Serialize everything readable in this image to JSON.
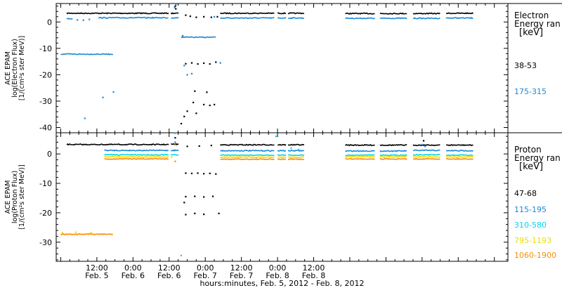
{
  "chart_data": [
    {
      "type": "scatter",
      "ylabel_lines": [
        "ACE EPAM",
        "log(Electron Flux)",
        "[1/(cm²s ster MeV)]"
      ],
      "ylim": [
        -42,
        7
      ],
      "yticks": [
        0,
        -10,
        -20,
        -30,
        -40
      ],
      "legend_title_lines": [
        "Electron",
        "Energy ran",
        "[keV]"
      ],
      "series": [
        {
          "name": "38-53",
          "color": "#000000",
          "runs": [
            {
              "t0": 2.0,
              "t1": 36.0,
              "y": 3.3
            },
            {
              "t0": 36.6,
              "t1": 39.2,
              "y": 3.3
            },
            {
              "t0": 53.0,
              "t1": 71.0,
              "y": 3.3
            },
            {
              "t0": 72.0,
              "t1": 75.0,
              "y": 3.3
            },
            {
              "t0": 75.5,
              "t1": 81.0,
              "y": 3.3
            },
            {
              "t0": 94.5,
              "t1": 104.5,
              "y": 3.2
            },
            {
              "t0": 106.0,
              "t1": 115.0,
              "y": 3.2
            },
            {
              "t0": 117.0,
              "t1": 126.0,
              "y": 3.2
            },
            {
              "t0": 128.0,
              "t1": 137.0,
              "y": 3.3
            }
          ],
          "points": [
            [
              38.0,
              6.0
            ],
            [
              38.2,
              5.0
            ],
            [
              41.5,
              2.6
            ],
            [
              43.0,
              2.2
            ],
            [
              45.0,
              1.8
            ],
            [
              47.5,
              2.0
            ],
            [
              50.0,
              1.8
            ],
            [
              52.0,
              2.0
            ],
            [
              41.5,
              -15.8
            ],
            [
              43.5,
              -15.5
            ],
            [
              45.5,
              -15.9
            ],
            [
              47.5,
              -15.6
            ],
            [
              49.5,
              -15.9
            ],
            [
              51.5,
              -15.2
            ],
            [
              44.5,
              -26.2
            ],
            [
              48.5,
              -26.6
            ],
            [
              44.0,
              -30.5
            ],
            [
              47.5,
              -31.3
            ],
            [
              49.5,
              -31.6
            ],
            [
              51.0,
              -31.3
            ],
            [
              42.0,
              -33.8
            ],
            [
              45.0,
              -34.6
            ],
            [
              41.0,
              -35.8
            ],
            [
              40.0,
              -38.5
            ]
          ]
        },
        {
          "name": "175-315",
          "color": "#1e88d8",
          "runs": [
            {
              "t0": 2.0,
              "t1": 4.0,
              "y": 1.3
            },
            {
              "t0": 12.5,
              "t1": 36.0,
              "y": 1.6
            },
            {
              "t0": 36.6,
              "t1": 39.2,
              "y": 1.6
            },
            {
              "t0": 53.0,
              "t1": 71.0,
              "y": 1.5
            },
            {
              "t0": 72.0,
              "t1": 75.0,
              "y": 1.5
            },
            {
              "t0": 75.5,
              "t1": 81.0,
              "y": 1.5
            },
            {
              "t0": 94.5,
              "t1": 104.5,
              "y": 1.4
            },
            {
              "t0": 106.0,
              "t1": 115.0,
              "y": 1.4
            },
            {
              "t0": 117.0,
              "t1": 126.0,
              "y": 1.4
            },
            {
              "t0": 128.0,
              "t1": 137.0,
              "y": 1.5
            },
            {
              "t0": 0.0,
              "t1": 17.5,
              "y": -12.2
            },
            {
              "t0": 40.0,
              "t1": 51.5,
              "y": -5.8
            }
          ],
          "points": [
            [
              5.5,
              0.8
            ],
            [
              7.5,
              0.7
            ],
            [
              9.5,
              1.0
            ],
            [
              37.8,
              5.5
            ],
            [
              38.2,
              6.5
            ],
            [
              40.5,
              -5.2
            ],
            [
              41.0,
              -16.5
            ],
            [
              42.0,
              -20.0
            ],
            [
              43.5,
              -19.6
            ],
            [
              53.0,
              -15.5
            ],
            [
              17.5,
              -26.5
            ],
            [
              14.0,
              -28.6
            ],
            [
              8.0,
              -36.5
            ],
            [
              51.0,
              2.0
            ]
          ]
        }
      ]
    },
    {
      "type": "scatter",
      "ylabel_lines": [
        "ACE EPAM",
        "log(Proton Flux)",
        "[1/(cm²s ster MeV)]"
      ],
      "ylim": [
        -36.5,
        7.2
      ],
      "yticks": [
        0,
        -10,
        -20,
        -30
      ],
      "legend_title_lines": [
        "Proton",
        "Energy ran",
        "[keV]"
      ],
      "series": [
        {
          "name": "47-68",
          "color": "#000000",
          "runs": [
            {
              "t0": 2.0,
              "t1": 36.0,
              "y": 3.2
            },
            {
              "t0": 36.6,
              "t1": 39.2,
              "y": 3.3
            },
            {
              "t0": 53.0,
              "t1": 71.0,
              "y": 3.1
            },
            {
              "t0": 72.0,
              "t1": 75.0,
              "y": 3.1
            },
            {
              "t0": 75.5,
              "t1": 81.0,
              "y": 3.1
            },
            {
              "t0": 94.5,
              "t1": 104.5,
              "y": 3.0
            },
            {
              "t0": 106.0,
              "t1": 115.0,
              "y": 3.0
            },
            {
              "t0": 117.0,
              "t1": 126.0,
              "y": 3.0
            },
            {
              "t0": 128.0,
              "t1": 137.0,
              "y": 3.0
            }
          ],
          "points": [
            [
              38.0,
              5.5
            ],
            [
              42.0,
              2.6
            ],
            [
              46.0,
              2.7
            ],
            [
              50.0,
              2.9
            ],
            [
              41.5,
              -6.5
            ],
            [
              43.5,
              -6.6
            ],
            [
              45.5,
              -6.5
            ],
            [
              47.5,
              -6.7
            ],
            [
              49.5,
              -6.6
            ],
            [
              51.5,
              -6.8
            ],
            [
              41.5,
              -14.5
            ],
            [
              44.5,
              -14.4
            ],
            [
              47.5,
              -14.6
            ],
            [
              50.5,
              -14.4
            ],
            [
              41.5,
              -20.6
            ],
            [
              44.5,
              -20.2
            ],
            [
              47.5,
              -20.5
            ],
            [
              52.5,
              -20.2
            ],
            [
              41.0,
              -16.5
            ],
            [
              120.5,
              4.5
            ]
          ]
        },
        {
          "name": "115-195",
          "color": "#1e88d8",
          "runs": [
            {
              "t0": 14.5,
              "t1": 36.0,
              "y": 1.2
            },
            {
              "t0": 36.6,
              "t1": 39.2,
              "y": 1.2
            },
            {
              "t0": 53.0,
              "t1": 71.0,
              "y": 1.1
            },
            {
              "t0": 72.0,
              "t1": 75.0,
              "y": 1.1
            },
            {
              "t0": 75.5,
              "t1": 81.0,
              "y": 1.1
            },
            {
              "t0": 94.5,
              "t1": 104.5,
              "y": 1.0
            },
            {
              "t0": 106.0,
              "t1": 115.0,
              "y": 1.0
            },
            {
              "t0": 117.0,
              "t1": 126.0,
              "y": 1.2
            },
            {
              "t0": 128.0,
              "t1": 137.0,
              "y": 1.1
            }
          ],
          "points": [
            [
              38.0,
              4.0
            ],
            [
              120.0,
              3.2
            ],
            [
              121.0,
              2.6
            ]
          ]
        },
        {
          "name": "310-580",
          "color": "#00d8e8",
          "runs": [
            {
              "t0": 14.5,
              "t1": 36.0,
              "y": -0.3
            },
            {
              "t0": 36.6,
              "t1": 39.2,
              "y": -0.3
            },
            {
              "t0": 53.0,
              "t1": 71.0,
              "y": -0.4
            },
            {
              "t0": 72.0,
              "t1": 75.0,
              "y": -0.4
            },
            {
              "t0": 75.5,
              "t1": 81.0,
              "y": -0.4
            },
            {
              "t0": 94.5,
              "t1": 104.5,
              "y": -0.4
            },
            {
              "t0": 106.0,
              "t1": 115.0,
              "y": -0.4
            },
            {
              "t0": 117.0,
              "t1": 126.0,
              "y": -0.3
            },
            {
              "t0": 128.0,
              "t1": 137.0,
              "y": -0.4
            }
          ],
          "points": [
            [
              38.0,
              7.0
            ],
            [
              71.5,
              6.0
            ],
            [
              76.5,
              2.0
            ],
            [
              79.0,
              1.5
            ]
          ]
        },
        {
          "name": "795-1193",
          "color": "#e8e000",
          "runs": [
            {
              "t0": 14.5,
              "t1": 36.0,
              "y": -1.0
            },
            {
              "t0": 53.0,
              "t1": 71.0,
              "y": -1.1
            },
            {
              "t0": 72.0,
              "t1": 75.0,
              "y": -1.1
            },
            {
              "t0": 75.5,
              "t1": 81.0,
              "y": -1.1
            },
            {
              "t0": 94.5,
              "t1": 104.5,
              "y": -1.0
            },
            {
              "t0": 106.0,
              "t1": 115.0,
              "y": -1.0
            },
            {
              "t0": 117.0,
              "t1": 126.0,
              "y": -1.0
            },
            {
              "t0": 128.0,
              "t1": 137.0,
              "y": -1.0
            }
          ],
          "points": [
            [
              36.8,
              -1.0
            ],
            [
              38.0,
              3.0
            ],
            [
              0.5,
              -26.8
            ],
            [
              5.0,
              -26.6
            ],
            [
              10.0,
              -26.7
            ]
          ]
        },
        {
          "name": "1060-1900",
          "color": "#ff8c00",
          "runs": [
            {
              "t0": 14.5,
              "t1": 36.0,
              "y": -1.7
            },
            {
              "t0": 53.0,
              "t1": 71.0,
              "y": -1.8
            },
            {
              "t0": 72.0,
              "t1": 75.0,
              "y": -1.8
            },
            {
              "t0": 75.5,
              "t1": 81.0,
              "y": -1.8
            },
            {
              "t0": 94.5,
              "t1": 104.5,
              "y": -1.7
            },
            {
              "t0": 106.0,
              "t1": 115.0,
              "y": -1.7
            },
            {
              "t0": 117.0,
              "t1": 126.0,
              "y": -1.7
            },
            {
              "t0": 128.0,
              "t1": 137.0,
              "y": -1.7
            },
            {
              "t0": 0.0,
              "t1": 17.5,
              "y": -27.3
            }
          ],
          "points": [
            [
              38.0,
              -2.5
            ],
            [
              40.0,
              -34.5
            ]
          ]
        }
      ]
    }
  ],
  "x_axis": {
    "unit": "hours since 00:00 Feb. 5, 2012",
    "xlim": [
      -1.5,
      148.5
    ],
    "ticks": [
      {
        "t": 12,
        "time": "12:00",
        "date": "Feb. 5"
      },
      {
        "t": 24,
        "time": "0:00",
        "date": "Feb. 6"
      },
      {
        "t": 36,
        "time": "12:00",
        "date": "Feb. 6"
      },
      {
        "t": 48,
        "time": "0:00",
        "date": "Feb. 7"
      },
      {
        "t": 60,
        "time": "12:00",
        "date": "Feb. 7"
      },
      {
        "t": 72,
        "time": "0:00",
        "date": "Feb. 8"
      },
      {
        "t": 84,
        "time": "12:00",
        "date": "Feb. 8"
      }
    ],
    "label": "hours:minutes, Feb.  5, 2012 - Feb.  8, 2012"
  }
}
